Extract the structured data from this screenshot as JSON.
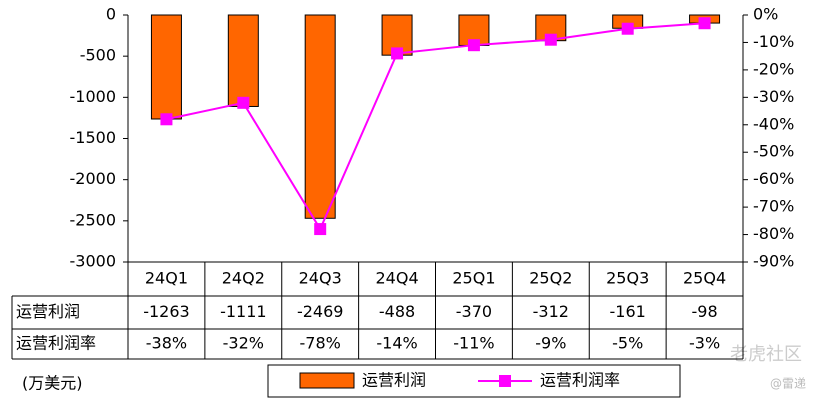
{
  "chart_data": {
    "type": "bar",
    "categories": [
      "24Q1",
      "24Q2",
      "24Q3",
      "24Q4",
      "25Q1",
      "25Q2",
      "25Q3",
      "25Q4"
    ],
    "series": [
      {
        "name": "运营利润",
        "color": "#ff6600",
        "values": [
          -1263,
          -1111,
          -2469,
          -488,
          -370,
          -312,
          -161,
          -98
        ]
      },
      {
        "name": "运营利润率",
        "color": "#ff00ff",
        "axis": "y2",
        "type": "line",
        "values": [
          -38,
          -32,
          -78,
          -14,
          -11,
          -9,
          -5,
          -3
        ],
        "value_labels": [
          "-38%",
          "-32%",
          "-78%",
          "-14%",
          "-11%",
          "-9%",
          "-5%",
          "-3%"
        ]
      }
    ],
    "ylim": [
      -3000,
      0
    ],
    "yticks": [
      0,
      -500,
      -1000,
      -1500,
      -2000,
      -2500,
      -3000
    ],
    "y2lim": [
      -90,
      0
    ],
    "y2ticks": [
      {
        "value": 0,
        "label": "0%"
      },
      {
        "value": -10,
        "label": "-10%"
      },
      {
        "value": -20,
        "label": "-20%"
      },
      {
        "value": -30,
        "label": "-30%"
      },
      {
        "value": -40,
        "label": "-40%"
      },
      {
        "value": -50,
        "label": "-50%"
      },
      {
        "value": -60,
        "label": "-60%"
      },
      {
        "value": -70,
        "label": "-70%"
      },
      {
        "value": -80,
        "label": "-80%"
      },
      {
        "value": -90,
        "label": "-90%"
      }
    ],
    "unit_label": "(万美元)",
    "watermark": [
      "老虎社区",
      "@雷递"
    ]
  }
}
